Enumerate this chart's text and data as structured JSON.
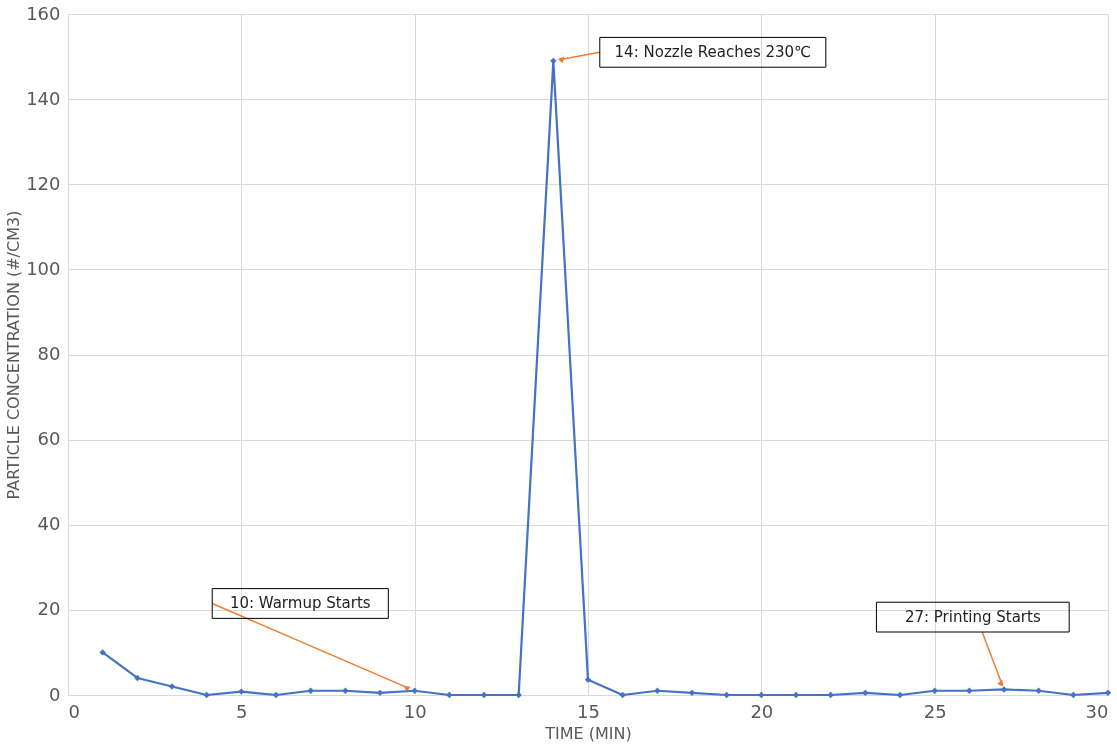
{
  "chart_data": {
    "type": "line",
    "xlabel": "TIME (MIN)",
    "ylabel": "PARTICLE CONCENTRATION (#/CM3)",
    "x": [
      1,
      2,
      3,
      4,
      5,
      6,
      7,
      8,
      9,
      10,
      11,
      12,
      13,
      14,
      15,
      16,
      17,
      18,
      19,
      20,
      21,
      22,
      23,
      24,
      25,
      26,
      27,
      28,
      29,
      30
    ],
    "series": [
      {
        "color": "#4472c4",
        "values": [
          10,
          4,
          2,
          0,
          0.8,
          0,
          1,
          1,
          0.5,
          1,
          0,
          0,
          0,
          149,
          3.6,
          0,
          1,
          0.5,
          0,
          0,
          0,
          0,
          0.5,
          0,
          1,
          1,
          1.3,
          1,
          0,
          0.5
        ]
      }
    ],
    "xlim": [
      0,
      30
    ],
    "xticks": [
      0,
      5,
      10,
      15,
      20,
      25,
      30
    ],
    "ylim": [
      0,
      160
    ],
    "yticks": [
      0,
      20,
      40,
      60,
      80,
      100,
      120,
      140,
      160
    ],
    "grid": true,
    "marker": "diamond",
    "line_style": "solid",
    "annotations": [
      {
        "text": "10: Warmup Starts",
        "x": 10,
        "y": 1
      },
      {
        "text": "14: Nozzle Reaches 230℃",
        "x": 14,
        "y": 149
      },
      {
        "text": "27: Printing Starts",
        "x": 27,
        "y": 1.3
      }
    ]
  }
}
